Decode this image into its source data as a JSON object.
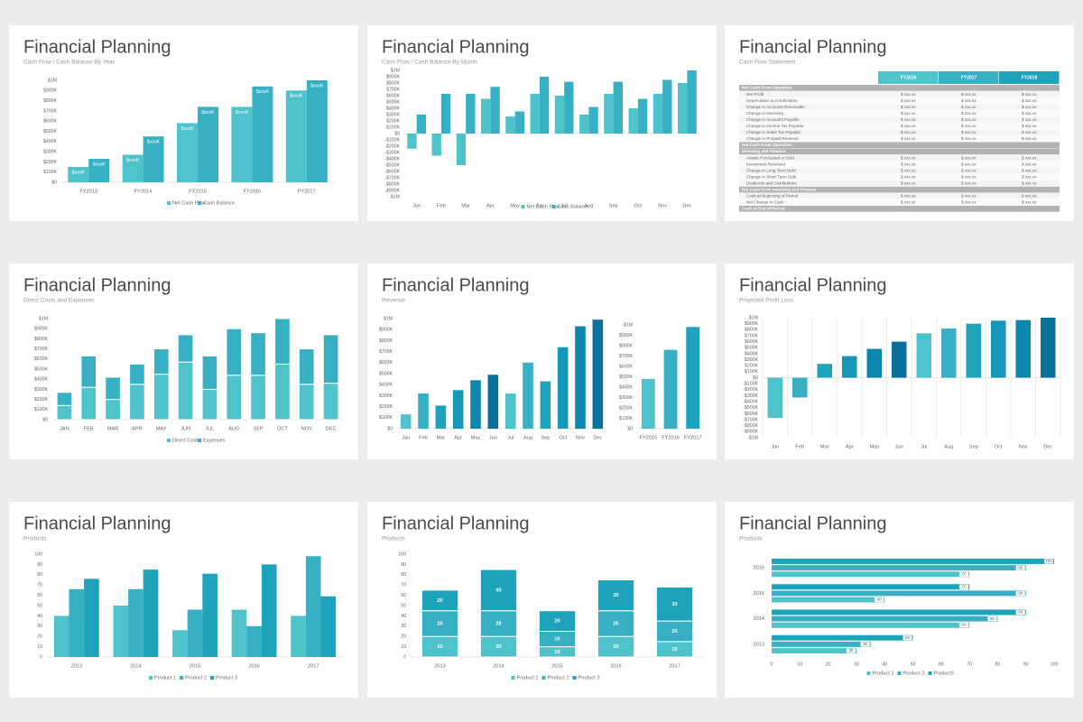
{
  "chart_data": [
    {
      "type": "bar",
      "title": "Financial Planning",
      "subtitle": "Cash Flow / Cash Balance By Year",
      "categories": [
        "FY2013",
        "FY2014",
        "FY2015",
        "FY2016",
        "FY2017"
      ],
      "series": [
        {
          "name": "Net Cash Flow",
          "color": "#4fc3cb",
          "values": [
            150000,
            270000,
            580000,
            740000,
            900000
          ],
          "value_labels": [
            "$xxxK",
            "$xxxK",
            "$xxxK",
            "$xxxK",
            "$xxxK"
          ]
        },
        {
          "name": "Cash Balance",
          "color": "#38b0c4",
          "values": [
            230000,
            450000,
            740000,
            940000,
            1000000
          ],
          "value_labels": [
            "$xxxK",
            "$xxxK",
            "$xxxK",
            "$xxxK",
            "$xxxK"
          ]
        }
      ],
      "ylim": [
        0,
        1000000
      ],
      "yticks": [
        {
          "value": 0,
          "label": "$0"
        },
        {
          "value": 100000,
          "label": "$100K"
        },
        {
          "value": 200000,
          "label": "$200K"
        },
        {
          "value": 300000,
          "label": "$300K"
        },
        {
          "value": 400000,
          "label": "$400K"
        },
        {
          "value": 500000,
          "label": "$500K"
        },
        {
          "value": 600000,
          "label": "$600K"
        },
        {
          "value": 700000,
          "label": "$700K"
        },
        {
          "value": 800000,
          "label": "$800K"
        },
        {
          "value": 900000,
          "label": "$900K"
        },
        {
          "value": 1000000,
          "label": "$1M"
        }
      ],
      "legend": "bottom"
    },
    {
      "type": "bar",
      "title": "Financial Planning",
      "subtitle": "Cash Flow / Cash Balance By Month",
      "categories": [
        "Jan",
        "Feb",
        "Mar",
        "Apr",
        "May",
        "Jun",
        "Jul",
        "Aug",
        "Sep",
        "Oct",
        "Nov",
        "Dec"
      ],
      "series": [
        {
          "name": "Net Cash Flow",
          "color": "#4fc3cb",
          "values": [
            -240000,
            -350000,
            -500000,
            550000,
            270000,
            630000,
            600000,
            300000,
            630000,
            400000,
            630000,
            800000
          ]
        },
        {
          "name": "Cash Balance",
          "color": "#38b0c4",
          "values": [
            300000,
            630000,
            630000,
            740000,
            350000,
            900000,
            820000,
            420000,
            820000,
            550000,
            850000,
            1000000
          ]
        }
      ],
      "ylim": [
        -1000000,
        1000000
      ],
      "yticks": [
        {
          "value": -1000000,
          "label": "-$1M"
        },
        {
          "value": -900000,
          "label": "-$900K"
        },
        {
          "value": -800000,
          "label": "-$800K"
        },
        {
          "value": -700000,
          "label": "-$700K"
        },
        {
          "value": -600000,
          "label": "-$600K"
        },
        {
          "value": -500000,
          "label": "-$500K"
        },
        {
          "value": -400000,
          "label": "-$400K"
        },
        {
          "value": -300000,
          "label": "-$300K"
        },
        {
          "value": -200000,
          "label": "-$200K"
        },
        {
          "value": -100000,
          "label": "-$100K"
        },
        {
          "value": 0,
          "label": "$0"
        },
        {
          "value": 100000,
          "label": "$100K"
        },
        {
          "value": 200000,
          "label": "$200K"
        },
        {
          "value": 300000,
          "label": "$300K"
        },
        {
          "value": 400000,
          "label": "$400K"
        },
        {
          "value": 500000,
          "label": "$500K"
        },
        {
          "value": 600000,
          "label": "$600K"
        },
        {
          "value": 700000,
          "label": "$700K"
        },
        {
          "value": 800000,
          "label": "$800K"
        },
        {
          "value": 900000,
          "label": "$900K"
        },
        {
          "value": 1000000,
          "label": "$1M"
        }
      ],
      "legend": "bottom"
    },
    {
      "type": "bar",
      "title": "Financial Planning",
      "subtitle": "Direct Costs and Expenses",
      "stacked": true,
      "categories": [
        "JAN",
        "FEB",
        "MAR",
        "APR",
        "MAY",
        "JUN",
        "JUL",
        "AUG",
        "SEP",
        "OCT",
        "NOV",
        "DEC"
      ],
      "series": [
        {
          "name": "Direct Costs",
          "color": "#4fc3cb",
          "values": [
            140000,
            320000,
            200000,
            350000,
            450000,
            570000,
            300000,
            440000,
            440000,
            550000,
            350000,
            360000
          ]
        },
        {
          "name": "Expenses",
          "color": "#38b0c4",
          "values": [
            130000,
            310000,
            220000,
            200000,
            250000,
            270000,
            330000,
            460000,
            420000,
            450000,
            350000,
            480000
          ]
        }
      ],
      "ylim": [
        0,
        1000000
      ],
      "yticks": [
        {
          "value": 0,
          "label": "$0"
        },
        {
          "value": 100000,
          "label": "$100K"
        },
        {
          "value": 200000,
          "label": "$200K"
        },
        {
          "value": 300000,
          "label": "$300K"
        },
        {
          "value": 400000,
          "label": "$400K"
        },
        {
          "value": 500000,
          "label": "$500K"
        },
        {
          "value": 600000,
          "label": "$600K"
        },
        {
          "value": 700000,
          "label": "$700K"
        },
        {
          "value": 800000,
          "label": "$800K"
        },
        {
          "value": 900000,
          "label": "$900K"
        },
        {
          "value": 1000000,
          "label": "$1M"
        }
      ],
      "legend": "bottom"
    },
    {
      "type": "bar",
      "title": "Financial Planning",
      "subtitle": "Revenue",
      "categories": [
        "Jan",
        "Feb",
        "Mar",
        "Apr",
        "May",
        "Jun",
        "Jul",
        "Aug",
        "Sep",
        "Oct",
        "Nov",
        "Dec"
      ],
      "values": [
        130000,
        320000,
        210000,
        350000,
        440000,
        490000,
        320000,
        600000,
        430000,
        740000,
        930000,
        990000
      ],
      "colors": [
        "#4fc3cb",
        "#38b0c4",
        "#1fa3bd",
        "#1696b8",
        "#0e86ae",
        "#0a6f9a",
        "#4fc3cb",
        "#38b0c4",
        "#1fa3bd",
        "#1696b8",
        "#0e86ae",
        "#0a6f9a"
      ],
      "ylim": [
        0,
        1000000
      ],
      "yticks": [
        {
          "value": 0,
          "label": "$0"
        },
        {
          "value": 100000,
          "label": "$100K"
        },
        {
          "value": 200000,
          "label": "$200K"
        },
        {
          "value": 300000,
          "label": "$300K"
        },
        {
          "value": 400000,
          "label": "$400K"
        },
        {
          "value": 500000,
          "label": "$500K"
        },
        {
          "value": 600000,
          "label": "$600K"
        },
        {
          "value": 700000,
          "label": "$700K"
        },
        {
          "value": 800000,
          "label": "$800K"
        },
        {
          "value": 900000,
          "label": "$900K"
        },
        {
          "value": 1000000,
          "label": "$1M"
        }
      ]
    },
    {
      "type": "bar",
      "categories": [
        "FY2015",
        "FY2016",
        "FY2017"
      ],
      "values": [
        480000,
        760000,
        980000
      ],
      "colors": [
        "#4fc3cb",
        "#38b0c4",
        "#1fa3bd"
      ],
      "ylim": [
        0,
        1000000
      ],
      "yticks": [
        {
          "value": 0,
          "label": "$0"
        },
        {
          "value": 100000,
          "label": "$100K"
        },
        {
          "value": 200000,
          "label": "$200K"
        },
        {
          "value": 300000,
          "label": "$300K"
        },
        {
          "value": 400000,
          "label": "$400K"
        },
        {
          "value": 500000,
          "label": "$500K"
        },
        {
          "value": 600000,
          "label": "$600K"
        },
        {
          "value": 700000,
          "label": "$700K"
        },
        {
          "value": 800000,
          "label": "$800K"
        },
        {
          "value": 900000,
          "label": "$900K"
        },
        {
          "value": 1000000,
          "label": "$1M"
        }
      ]
    },
    {
      "type": "bar",
      "title": "Financial Planning",
      "subtitle": "Projected Profit  Loss",
      "categories": [
        "Jan",
        "Feb",
        "Mar",
        "Apr",
        "May",
        "Jun",
        "Jul",
        "Aug",
        "Sep",
        "Oct",
        "Nov",
        "Dec"
      ],
      "values": [
        -670000,
        -330000,
        230000,
        360000,
        480000,
        600000,
        740000,
        820000,
        900000,
        950000,
        960000,
        1000000
      ],
      "colors": [
        "#4fc3cb",
        "#38b0c4",
        "#1fa3bd",
        "#1696b8",
        "#0e86ae",
        "#0a6f9a",
        "#4fc3cb",
        "#38b0c4",
        "#1fa3bd",
        "#1696b8",
        "#0e86ae",
        "#0a6f9a"
      ],
      "ylim": [
        -1000000,
        1000000
      ],
      "yticks": [
        {
          "value": -1000000,
          "label": "-$1M"
        },
        {
          "value": -900000,
          "label": "-$900K"
        },
        {
          "value": -800000,
          "label": "-$800K"
        },
        {
          "value": -700000,
          "label": "-$700K"
        },
        {
          "value": -600000,
          "label": "-$600K"
        },
        {
          "value": -500000,
          "label": "-$500K"
        },
        {
          "value": -400000,
          "label": "-$400K"
        },
        {
          "value": -300000,
          "label": "-$300K"
        },
        {
          "value": -200000,
          "label": "-$200K"
        },
        {
          "value": -100000,
          "label": "-$100K"
        },
        {
          "value": 0,
          "label": "$0"
        },
        {
          "value": 100000,
          "label": "$100K"
        },
        {
          "value": 200000,
          "label": "$200K"
        },
        {
          "value": 300000,
          "label": "$300K"
        },
        {
          "value": 400000,
          "label": "$400K"
        },
        {
          "value": 500000,
          "label": "$500K"
        },
        {
          "value": 600000,
          "label": "$600K"
        },
        {
          "value": 700000,
          "label": "$700K"
        },
        {
          "value": 800000,
          "label": "$800K"
        },
        {
          "value": 900000,
          "label": "$900K"
        },
        {
          "value": 1000000,
          "label": "$1M"
        }
      ]
    },
    {
      "type": "bar",
      "title": "Financial Planning",
      "subtitle": "Products",
      "categories": [
        "2013",
        "2014",
        "2015",
        "2016",
        "2017"
      ],
      "series": [
        {
          "name": "Product 1",
          "color": "#4fc3cb",
          "values": [
            40,
            50,
            26,
            46,
            40
          ]
        },
        {
          "name": "Product 2",
          "color": "#38b0c4",
          "values": [
            66,
            66,
            46,
            30,
            98
          ]
        },
        {
          "name": "Product 3",
          "color": "#1fa3bd",
          "values": [
            76,
            85,
            81,
            90,
            59
          ]
        }
      ],
      "ylim": [
        0,
        100
      ],
      "yticks": [
        0,
        10,
        20,
        30,
        40,
        50,
        60,
        70,
        80,
        90,
        100
      ],
      "legend": "bottom"
    },
    {
      "type": "bar",
      "title": "Financial Planning",
      "subtitle": "Products",
      "stacked": true,
      "data_labels": true,
      "categories": [
        "2013",
        "2014",
        "2015",
        "2016",
        "2017"
      ],
      "series": [
        {
          "name": "Product 1",
          "color": "#4fc3cb",
          "values": [
            20,
            20,
            10,
            20,
            15
          ]
        },
        {
          "name": "Product 2",
          "color": "#38b0c4",
          "values": [
            25,
            25,
            15,
            25,
            20
          ]
        },
        {
          "name": "Product 3",
          "color": "#1fa3bd",
          "values": [
            20,
            40,
            20,
            30,
            33
          ]
        }
      ],
      "ylim": [
        0,
        100
      ],
      "yticks": [
        0,
        10,
        20,
        30,
        40,
        50,
        60,
        70,
        80,
        90,
        100
      ],
      "legend": "bottom"
    },
    {
      "type": "bar",
      "title": "Financial Planning",
      "subtitle": "Products",
      "horizontal": true,
      "data_labels": true,
      "categories": [
        "2013",
        "2014",
        "2015",
        "2016"
      ],
      "series": [
        {
          "name": "Product 1",
          "color": "#4fc3cb",
          "values": [
            30,
            70,
            40,
            70
          ]
        },
        {
          "name": "Product 2",
          "color": "#38b0c4",
          "values": [
            35,
            80,
            90,
            90
          ]
        },
        {
          "name": "Product3",
          "color": "#1fa3bd",
          "values": [
            50,
            90,
            70,
            100
          ]
        }
      ],
      "xlim": [
        0,
        100
      ],
      "xticks": [
        0,
        10,
        20,
        30,
        40,
        50,
        60,
        70,
        80,
        90,
        100
      ],
      "legend": "bottom"
    }
  ],
  "table": {
    "title": "Financial Planning",
    "subtitle": "Cash Flow Statement",
    "columns": [
      "FY2016",
      "FY2017",
      "FY2018"
    ],
    "rows": [
      [
        "Net Cash From Operation"
      ],
      [
        "Net Profit",
        "$ xxx.xx",
        "$ xxx.xx",
        "$ xxx.xx"
      ],
      [
        "Depreciation & Amortization",
        "$ xxx.xx",
        "$ xxx.xx",
        "$ xxx.xx"
      ],
      [
        "Change in Accounts Receivable",
        "$ xxx.xx",
        "$ xxx.xx",
        "$ xxx.xx"
      ],
      [
        "Change in Inventory",
        "$ xxx.xx",
        "$ xxx.xx",
        "$ xxx.xx"
      ],
      [
        "Change in Accounts Payable",
        "$ xxx.xx",
        "$ xxx.xx",
        "$ xxx.xx"
      ],
      [
        "Change in Income Tax Payable",
        "$ xxx.xx",
        "$ xxx.xx",
        "$ xxx.xx"
      ],
      [
        "Change in Sales Tax Payable",
        "$ xxx.xx",
        "$ xxx.xx",
        "$ xxx.xx"
      ],
      [
        "Change in Prepaid Revenue",
        "$ xxx.xx",
        "$ xxx.xx",
        "$ xxx.xx"
      ],
      [
        "Net Cash From Operation"
      ],
      [
        "Investing and Finance"
      ],
      [
        "Assets Purchased or Sold",
        "$ xxx.xx",
        "$ xxx.xx",
        "$ xxx.xx"
      ],
      [
        "Investment Received",
        "$ xxx.xx",
        "$ xxx.xx",
        "$ xxx.xx"
      ],
      [
        "Change in Long Term Debt",
        "$ xxx.xx",
        "$ xxx.xx",
        "$ xxx.xx"
      ],
      [
        "Change in Short Term Debt",
        "$ xxx.xx",
        "$ xxx.xx",
        "$ xxx.xx"
      ],
      [
        "Dividends and Distributions",
        "$ xxx.xx",
        "$ xxx.xx",
        "$ xxx.xx"
      ],
      [
        "Net Cash From Investing and Finance"
      ],
      [
        "Cash at Beginning of Period",
        "$ xxx.xx",
        "$ xxx.xx",
        "$ xxx.xx"
      ],
      [
        "Net Change in Cash",
        "$ xxx.xx",
        "$ xxx.xx",
        "$ xxx.xx"
      ],
      [
        "Cash at End of Period"
      ]
    ]
  }
}
